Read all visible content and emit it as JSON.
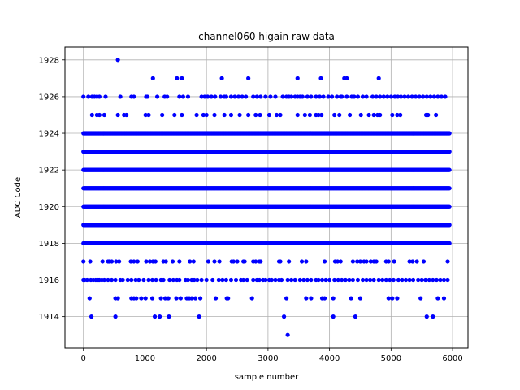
{
  "chart_data": {
    "type": "scatter",
    "title": "channel060 higain raw data",
    "xlabel": "sample number",
    "ylabel": "ADC Code",
    "xlim": [
      -300,
      6250
    ],
    "ylim": [
      1912.3,
      1928.7
    ],
    "x_ticks": [
      0,
      1000,
      2000,
      3000,
      4000,
      5000,
      6000
    ],
    "y_ticks": [
      1914,
      1916,
      1918,
      1920,
      1922,
      1924,
      1926,
      1928
    ],
    "grid": true,
    "marker_color": "#0000ff",
    "x_range": [
      0,
      5950
    ],
    "series": [
      {
        "dense_levels": [
          1918,
          1919,
          1920,
          1921,
          1922,
          1923,
          1924
        ],
        "sparse_levels": [
          {
            "y": 1915,
            "x": [
              100,
              520,
              560,
              780,
              820,
              860,
              940,
              1010,
              1120,
              1260,
              1330,
              1380,
              1510,
              1580,
              1680,
              1720,
              1760,
              1820,
              1900,
              2150,
              2330,
              2350,
              2740,
              3300,
              3620,
              3700,
              3880,
              3920,
              4060,
              4350,
              4500,
              4960,
              5020,
              5100,
              5480,
              5760,
              5860
            ]
          },
          {
            "y": 1916,
            "x": [
              0,
              20,
              60,
              120,
              160,
              200,
              240,
              260,
              300,
              340,
              400,
              460,
              520,
              600,
              640,
              720,
              780,
              850,
              900,
              980,
              1060,
              1120,
              1180,
              1260,
              1300,
              1400,
              1460,
              1520,
              1560,
              1660,
              1700,
              1760,
              1800,
              1850,
              1920,
              2000,
              2100,
              2200,
              2260,
              2320,
              2400,
              2480,
              2560,
              2600,
              2660,
              2760,
              2820,
              2860,
              2920,
              2960,
              3020,
              3060,
              3120,
              3180,
              3220,
              3320,
              3380,
              3440,
              3520,
              3580,
              3640,
              3700,
              3780,
              3820,
              3880,
              3940,
              4000,
              4080,
              4140,
              4200,
              4260,
              4320,
              4380,
              4460,
              4540,
              4600,
              4660,
              4720,
              4800,
              4860,
              4920,
              4980,
              5040,
              5120,
              5180,
              5240,
              5300,
              5360,
              5440,
              5500,
              5560,
              5620,
              5680,
              5740,
              5800,
              5860,
              5920
            ]
          },
          {
            "y": 1917,
            "x": [
              0,
              110,
              310,
              400,
              420,
              460,
              530,
              580,
              770,
              820,
              880,
              1020,
              1080,
              1130,
              1170,
              1300,
              1340,
              1450,
              1560,
              1730,
              1790,
              2030,
              2130,
              2210,
              2410,
              2440,
              2500,
              2600,
              2620,
              2760,
              2800,
              2860,
              2880,
              3180,
              3200,
              3340,
              3550,
              3620,
              3920,
              4090,
              4130,
              4180,
              4380,
              4450,
              4500,
              4560,
              4600,
              4670,
              4720,
              4760,
              4920,
              4960,
              5050,
              5300,
              5350,
              5420,
              5530,
              5920
            ]
          },
          {
            "y": 1925,
            "x": [
              140,
              220,
              260,
              340,
              560,
              660,
              700,
              1010,
              1060,
              1280,
              1480,
              1600,
              1840,
              1950,
              2000,
              2130,
              2290,
              2400,
              2540,
              2680,
              2800,
              2870,
              3020,
              3140,
              3200,
              3480,
              3600,
              3680,
              3780,
              3820,
              3870,
              4080,
              4160,
              4330,
              4510,
              4640,
              4720,
              4780,
              4820,
              5020,
              5100,
              5150,
              5570,
              5600,
              5730
            ]
          },
          {
            "y": 1926,
            "x": [
              0,
              80,
              140,
              180,
              220,
              260,
              360,
              600,
              780,
              820,
              1020,
              1040,
              1200,
              1320,
              1360,
              1560,
              1620,
              1700,
              1920,
              1970,
              2020,
              2080,
              2140,
              2230,
              2290,
              2320,
              2400,
              2460,
              2520,
              2580,
              2640,
              2760,
              2820,
              2880,
              2960,
              3040,
              3120,
              3240,
              3300,
              3340,
              3380,
              3440,
              3480,
              3520,
              3560,
              3640,
              3700,
              3780,
              3840,
              3900,
              3980,
              4040,
              4120,
              4180,
              4200,
              4280,
              4360,
              4400,
              4460,
              4540,
              4600,
              4700,
              4760,
              4820,
              4880,
              4940,
              5000,
              5060,
              5110,
              5160,
              5220,
              5280,
              5340,
              5400,
              5460,
              5520,
              5580,
              5640,
              5700,
              5760,
              5820,
              5880
            ]
          },
          {
            "y": 1914,
            "x": [
              130,
              520,
              1160,
              1240,
              1390,
              1880,
              3260,
              4060,
              4420,
              5580,
              5680
            ]
          },
          {
            "y": 1927,
            "x": [
              1130,
              1520,
              1600,
              2250,
              2680,
              3480,
              3860,
              4240,
              4280,
              4800
            ]
          },
          {
            "y": 1928,
            "x": [
              560
            ]
          },
          {
            "y": 1913,
            "x": [
              3320
            ]
          }
        ]
      }
    ]
  }
}
